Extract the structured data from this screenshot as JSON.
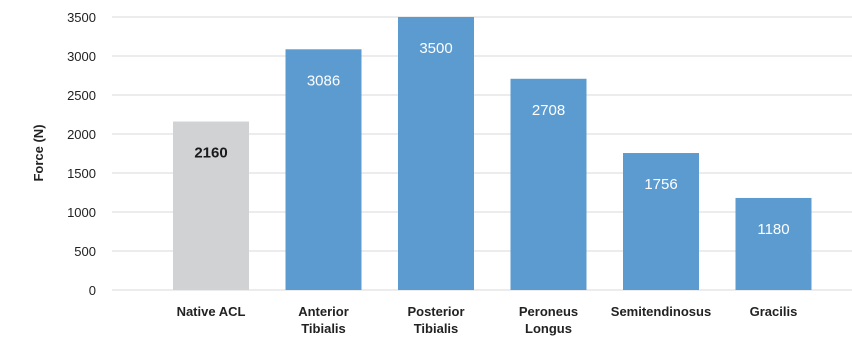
{
  "chart_data": {
    "type": "bar",
    "ylabel": "Force (N)",
    "xlabel": "",
    "ylim": [
      0,
      3500
    ],
    "yticks": [
      0,
      500,
      1000,
      1500,
      2000,
      2500,
      3000,
      3500
    ],
    "grid": true,
    "legend": "none",
    "categories": [
      [
        "Native ACL"
      ],
      [
        "Anterior",
        "Tibialis"
      ],
      [
        "Posterior",
        "Tibialis"
      ],
      [
        "Peroneus",
        "Longus"
      ],
      [
        "Semitendinosus"
      ],
      [
        "Gracilis"
      ]
    ],
    "values": [
      2160,
      3086,
      3500,
      2708,
      1756,
      1180
    ],
    "data_labels": [
      "2160",
      "3086",
      "3500",
      "2708",
      "1756",
      "1180"
    ],
    "colors": {
      "native": "#d0d2d4",
      "graft": "#5b9bd0",
      "label_on_native": "#1a1a1a",
      "label_on_graft": "#ffffff",
      "grid": "#d9d9d9"
    },
    "bar_color_keys": [
      "native",
      "graft",
      "graft",
      "graft",
      "graft",
      "graft"
    ]
  }
}
